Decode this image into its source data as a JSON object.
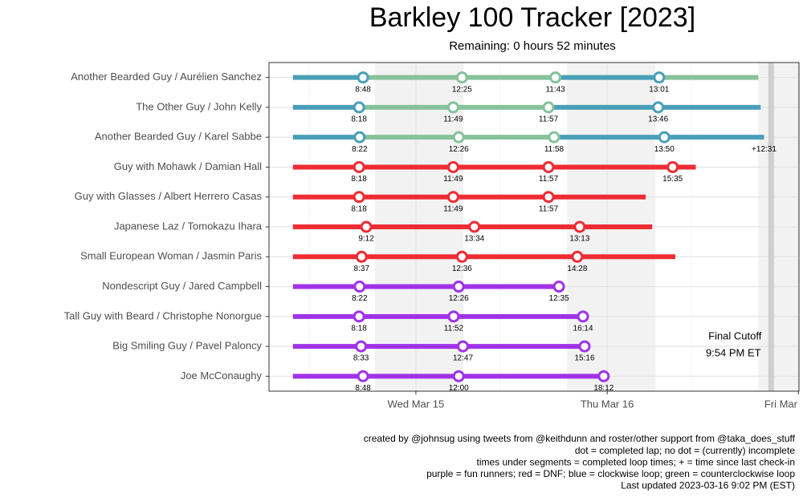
{
  "chart_data": {
    "type": "timeline",
    "title": "Barkley 100 Tracker [2023]",
    "subtitle": "Remaining: 0 hours 52 minutes",
    "xlim": [
      -3,
      63.5
    ],
    "xticks": [
      {
        "value": 15.43,
        "label": "Wed Mar 15"
      },
      {
        "value": 39.43,
        "label": "Thu Mar 16"
      },
      {
        "value": 63.43,
        "label": "Fri Mar"
      }
    ],
    "minor_xticks": [
      2,
      26,
      50
    ],
    "grid": true,
    "shaded_ranges": [
      [
        10.3,
        21.4
      ],
      [
        34.4,
        45.5
      ],
      [
        58.4,
        63.5
      ]
    ],
    "cutoff": 60,
    "annotations": [
      "Final Cutoff",
      "9:54 PM ET"
    ],
    "series": [
      {
        "name": "Another Bearded Guy / Aurélien Sanchez",
        "values": [
          8.8,
          12.4167,
          11.7167,
          13.0167,
          12.44
        ],
        "value_labels": [
          "8:48",
          "12:25",
          "11:43",
          "13:01",
          null
        ],
        "colors": [
          "#4a9fb8",
          "#86c29b",
          "#86c29b",
          "#4a9fb8",
          "#86c29b"
        ],
        "complete": [
          true,
          true,
          true,
          true,
          false
        ]
      },
      {
        "name": "The Other Guy / John Kelly",
        "values": [
          8.3,
          11.8167,
          11.95,
          13.7667,
          12.86
        ],
        "value_labels": [
          "8:18",
          "11:49",
          "11:57",
          "13:46",
          null
        ],
        "colors": [
          "#4a9fb8",
          "#86c29b",
          "#86c29b",
          "#4a9fb8",
          "#4a9fb8"
        ],
        "complete": [
          true,
          true,
          true,
          true,
          false
        ]
      },
      {
        "name": "Another Bearded Guy / Karel Sabbe",
        "values": [
          8.3667,
          12.4333,
          11.9667,
          13.8333,
          12.5167
        ],
        "value_labels": [
          "8:22",
          "12:26",
          "11:58",
          "13:50",
          "+12:31"
        ],
        "colors": [
          "#4a9fb8",
          "#86c29b",
          "#86c29b",
          "#4a9fb8",
          "#4a9fb8"
        ],
        "complete": [
          true,
          true,
          true,
          true,
          false
        ]
      },
      {
        "name": "Guy with Mohawk / Damian Hall",
        "values": [
          8.3,
          11.8167,
          11.95,
          15.5833,
          2.9
        ],
        "value_labels": [
          "8:18",
          "11:49",
          "11:57",
          "15:35",
          null
        ],
        "colors": [
          "#ee2c34",
          "#ee2c34",
          "#ee2c34",
          "#ee2c34",
          "#ee2c34"
        ],
        "complete": [
          true,
          true,
          true,
          true,
          false
        ]
      },
      {
        "name": "Guy with Glasses / Albert Herrero Casas",
        "values": [
          8.3,
          11.8167,
          11.95,
          12.2
        ],
        "value_labels": [
          "8:18",
          "11:49",
          "11:57",
          null
        ],
        "colors": [
          "#ee2c34",
          "#ee2c34",
          "#ee2c34",
          "#ee2c34"
        ],
        "complete": [
          true,
          true,
          true,
          false
        ]
      },
      {
        "name": "Japanese Laz / Tomokazu Ihara",
        "values": [
          9.2,
          13.5667,
          13.2167,
          9.1
        ],
        "value_labels": [
          "9:12",
          "13:34",
          "13:13",
          null
        ],
        "colors": [
          "#ee2c34",
          "#ee2c34",
          "#ee2c34",
          "#ee2c34"
        ],
        "complete": [
          true,
          true,
          true,
          false
        ]
      },
      {
        "name": "Small European Woman / Jasmin Paris",
        "values": [
          8.6167,
          12.6,
          14.4667,
          12.3
        ],
        "value_labels": [
          "8:37",
          "12:36",
          "14:28",
          null
        ],
        "colors": [
          "#ee2c34",
          "#ee2c34",
          "#ee2c34",
          "#ee2c34"
        ],
        "complete": [
          true,
          true,
          true,
          false
        ]
      },
      {
        "name": "Nondescript Guy / Jared Campbell",
        "values": [
          8.3667,
          12.4333,
          12.5833
        ],
        "value_labels": [
          "8:22",
          "12:26",
          "12:35"
        ],
        "colors": [
          "#a032e8",
          "#a032e8",
          "#a032e8"
        ],
        "complete": [
          true,
          true,
          true
        ]
      },
      {
        "name": "Tall Guy with Beard / Christophe Nonorgue",
        "values": [
          8.3,
          11.8667,
          16.2333
        ],
        "value_labels": [
          "8:18",
          "11:52",
          "16:14"
        ],
        "colors": [
          "#a032e8",
          "#a032e8",
          "#a032e8"
        ],
        "complete": [
          true,
          true,
          true
        ]
      },
      {
        "name": "Big Smiling Guy / Pavel Paloncy",
        "values": [
          8.55,
          12.7833,
          15.2667
        ],
        "value_labels": [
          "8:33",
          "12:47",
          "15:16"
        ],
        "colors": [
          "#a032e8",
          "#a032e8",
          "#a032e8"
        ],
        "complete": [
          true,
          true,
          true
        ]
      },
      {
        "name": "Joe McConaughy",
        "values": [
          8.8,
          12,
          18.2
        ],
        "value_labels": [
          "8:48",
          "12:00",
          "18:12"
        ],
        "colors": [
          "#a032e8",
          "#a032e8",
          "#a032e8"
        ],
        "complete": [
          true,
          true,
          true
        ]
      }
    ],
    "caption": [
      "created by @johnsug using tweets from @keithdunn and roster/other support from @taka_does_stuff",
      "dot = completed lap; no dot = (currently) incomplete",
      "times under segments = completed loop times; + = time since last check-in",
      "purple = fun runners; red = DNF; blue = clockwise loop; green = counterclockwise loop",
      "Last updated 2023-03-16 9:02 PM (EST)"
    ]
  }
}
